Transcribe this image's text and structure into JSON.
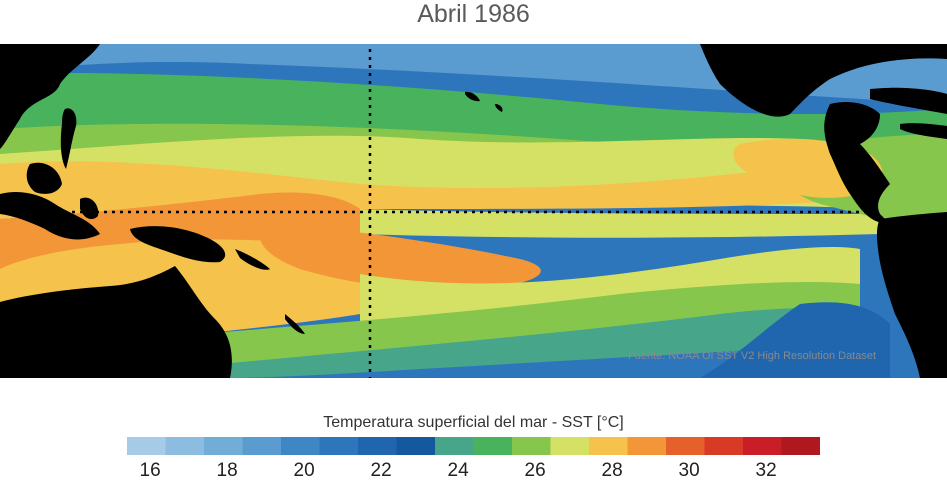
{
  "title": "Abril 1986",
  "source": "Fuente: NOAA OI SST V2 High Resolution Dataset",
  "colorbar": {
    "title": "Temperatura superficial del mar - SST  [°C]",
    "ticks": [
      "16",
      "18",
      "20",
      "22",
      "24",
      "26",
      "28",
      "30",
      "32"
    ],
    "colors": [
      "#a6cbe6",
      "#8cbde0",
      "#72add8",
      "#5a9bd0",
      "#3f86c4",
      "#2e76bb",
      "#1f66ae",
      "#14589e",
      "#47a58a",
      "#48b35c",
      "#86c64c",
      "#d5e164",
      "#f5c24c",
      "#f29637",
      "#e5602a",
      "#d83a26",
      "#c91e28",
      "#b0181f"
    ],
    "units": "°C"
  },
  "map": {
    "region": "Pacifico tropical",
    "grid_lines": [
      "ecuador",
      "meridiano 180"
    ]
  }
}
